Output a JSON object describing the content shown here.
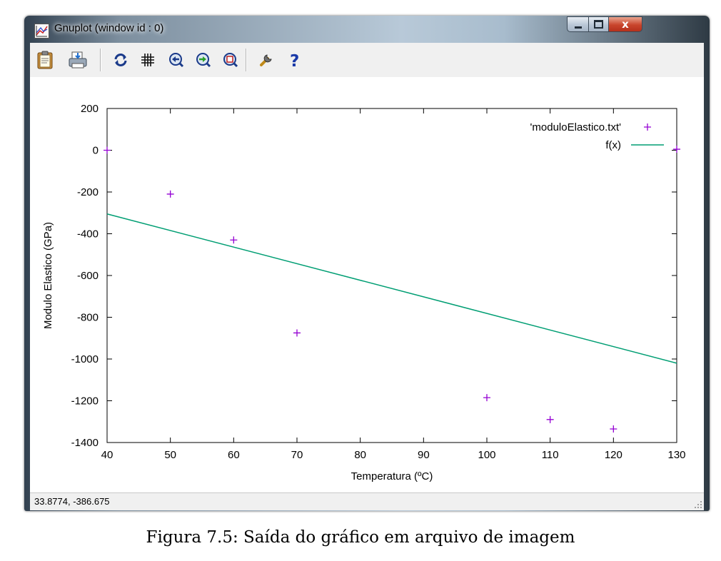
{
  "window": {
    "title": "Gnuplot (window id : 0)",
    "close_glyph": "x"
  },
  "toolbar": {
    "items": [
      {
        "name": "clipboard-icon",
        "kind": "copy to clipboard"
      },
      {
        "name": "print-icon",
        "kind": "print"
      },
      {
        "name": "replot-icon",
        "kind": "replot"
      },
      {
        "name": "grid-icon",
        "kind": "toggle grid"
      },
      {
        "name": "zoom-previous-icon",
        "kind": "previous zoom"
      },
      {
        "name": "zoom-next-icon",
        "kind": "next zoom"
      },
      {
        "name": "unzoom-icon",
        "kind": "unzoom"
      },
      {
        "name": "options-icon",
        "kind": "options"
      },
      {
        "name": "help-icon",
        "kind": "help",
        "glyph": "?"
      }
    ]
  },
  "chart_data": {
    "type": "scatter",
    "title": "",
    "xlabel": "Temperatura (ºC)",
    "ylabel": "Modulo Elastico (GPa)",
    "xlim": [
      40,
      130
    ],
    "ylim": [
      -1400,
      200
    ],
    "x_ticks": [
      40,
      50,
      60,
      70,
      80,
      90,
      100,
      110,
      120,
      130
    ],
    "y_ticks": [
      200,
      0,
      -200,
      -400,
      -600,
      -800,
      -1000,
      -1200,
      -1400
    ],
    "grid": false,
    "legend_position": "top-right",
    "series": [
      {
        "name": "'moduloElastico.txt'",
        "type": "scatter",
        "marker": "+",
        "color": "#9400d3",
        "x": [
          40,
          50,
          60,
          70,
          100,
          110,
          120,
          130
        ],
        "y": [
          0,
          -210,
          -430,
          -875,
          -1185,
          -1290,
          -1335,
          5
        ]
      },
      {
        "name": "f(x)",
        "type": "line",
        "color": "#009e73",
        "x": [
          40,
          130
        ],
        "y": [
          -305,
          -1020
        ]
      }
    ]
  },
  "status": {
    "coordinates": "33.8774, -386.675"
  },
  "caption": "Figura 7.5: Saída do gráfico em arquivo de imagem"
}
